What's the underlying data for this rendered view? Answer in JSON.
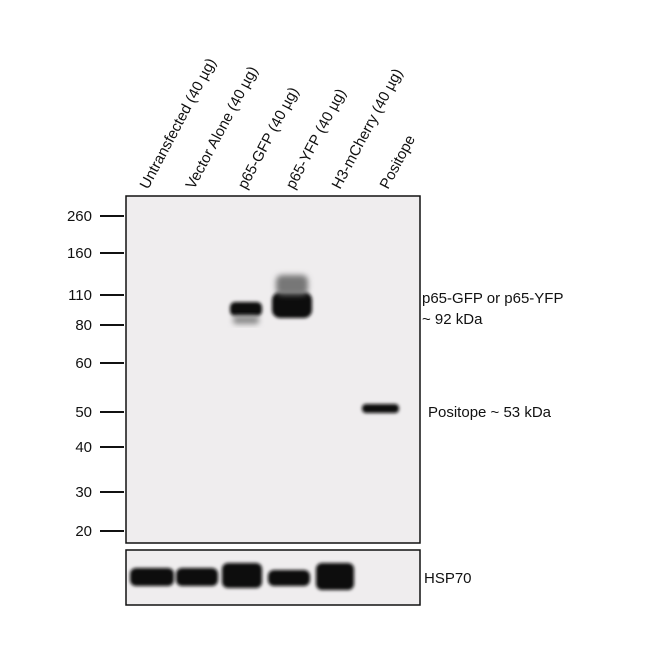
{
  "lanes": [
    "Untransfected (40 µg)",
    "Vector Alone (40 µg)",
    "p65-GFP (40 µg)",
    "p65-YFP (40 µg)",
    "H3-mCherry (40 µg)",
    "Positope"
  ],
  "markers": [
    "260",
    "160",
    "110",
    "80",
    "60",
    "50",
    "40",
    "30",
    "20"
  ],
  "annotations": {
    "p65_line1": "p65-GFP or p65-YFP",
    "p65_line2": "~ 92 kDa",
    "positope": "Positope ~ 53 kDa",
    "loading_control": "HSP70"
  }
}
